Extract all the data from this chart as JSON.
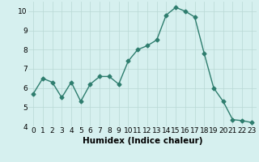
{
  "x": [
    0,
    1,
    2,
    3,
    4,
    5,
    6,
    7,
    8,
    9,
    10,
    11,
    12,
    13,
    14,
    15,
    16,
    17,
    18,
    19,
    20,
    21,
    22,
    23
  ],
  "y": [
    5.7,
    6.5,
    6.3,
    5.5,
    6.3,
    5.3,
    6.2,
    6.6,
    6.6,
    6.2,
    7.4,
    8.0,
    8.2,
    8.5,
    9.8,
    10.2,
    10.0,
    9.7,
    7.8,
    6.0,
    5.3,
    4.35,
    4.3,
    4.2
  ],
  "line_color": "#2e7d6e",
  "marker": "D",
  "marker_size": 2.5,
  "bg_color": "#d6f0ef",
  "grid_color": "#b8d8d5",
  "xlabel": "Humidex (Indice chaleur)",
  "ylim": [
    4,
    10.5
  ],
  "xlim": [
    -0.5,
    23.5
  ],
  "yticks": [
    4,
    5,
    6,
    7,
    8,
    9,
    10
  ],
  "xticks": [
    0,
    1,
    2,
    3,
    4,
    5,
    6,
    7,
    8,
    9,
    10,
    11,
    12,
    13,
    14,
    15,
    16,
    17,
    18,
    19,
    20,
    21,
    22,
    23
  ],
  "tick_fontsize": 6.5,
  "xlabel_fontsize": 7.5,
  "linewidth": 1.0
}
